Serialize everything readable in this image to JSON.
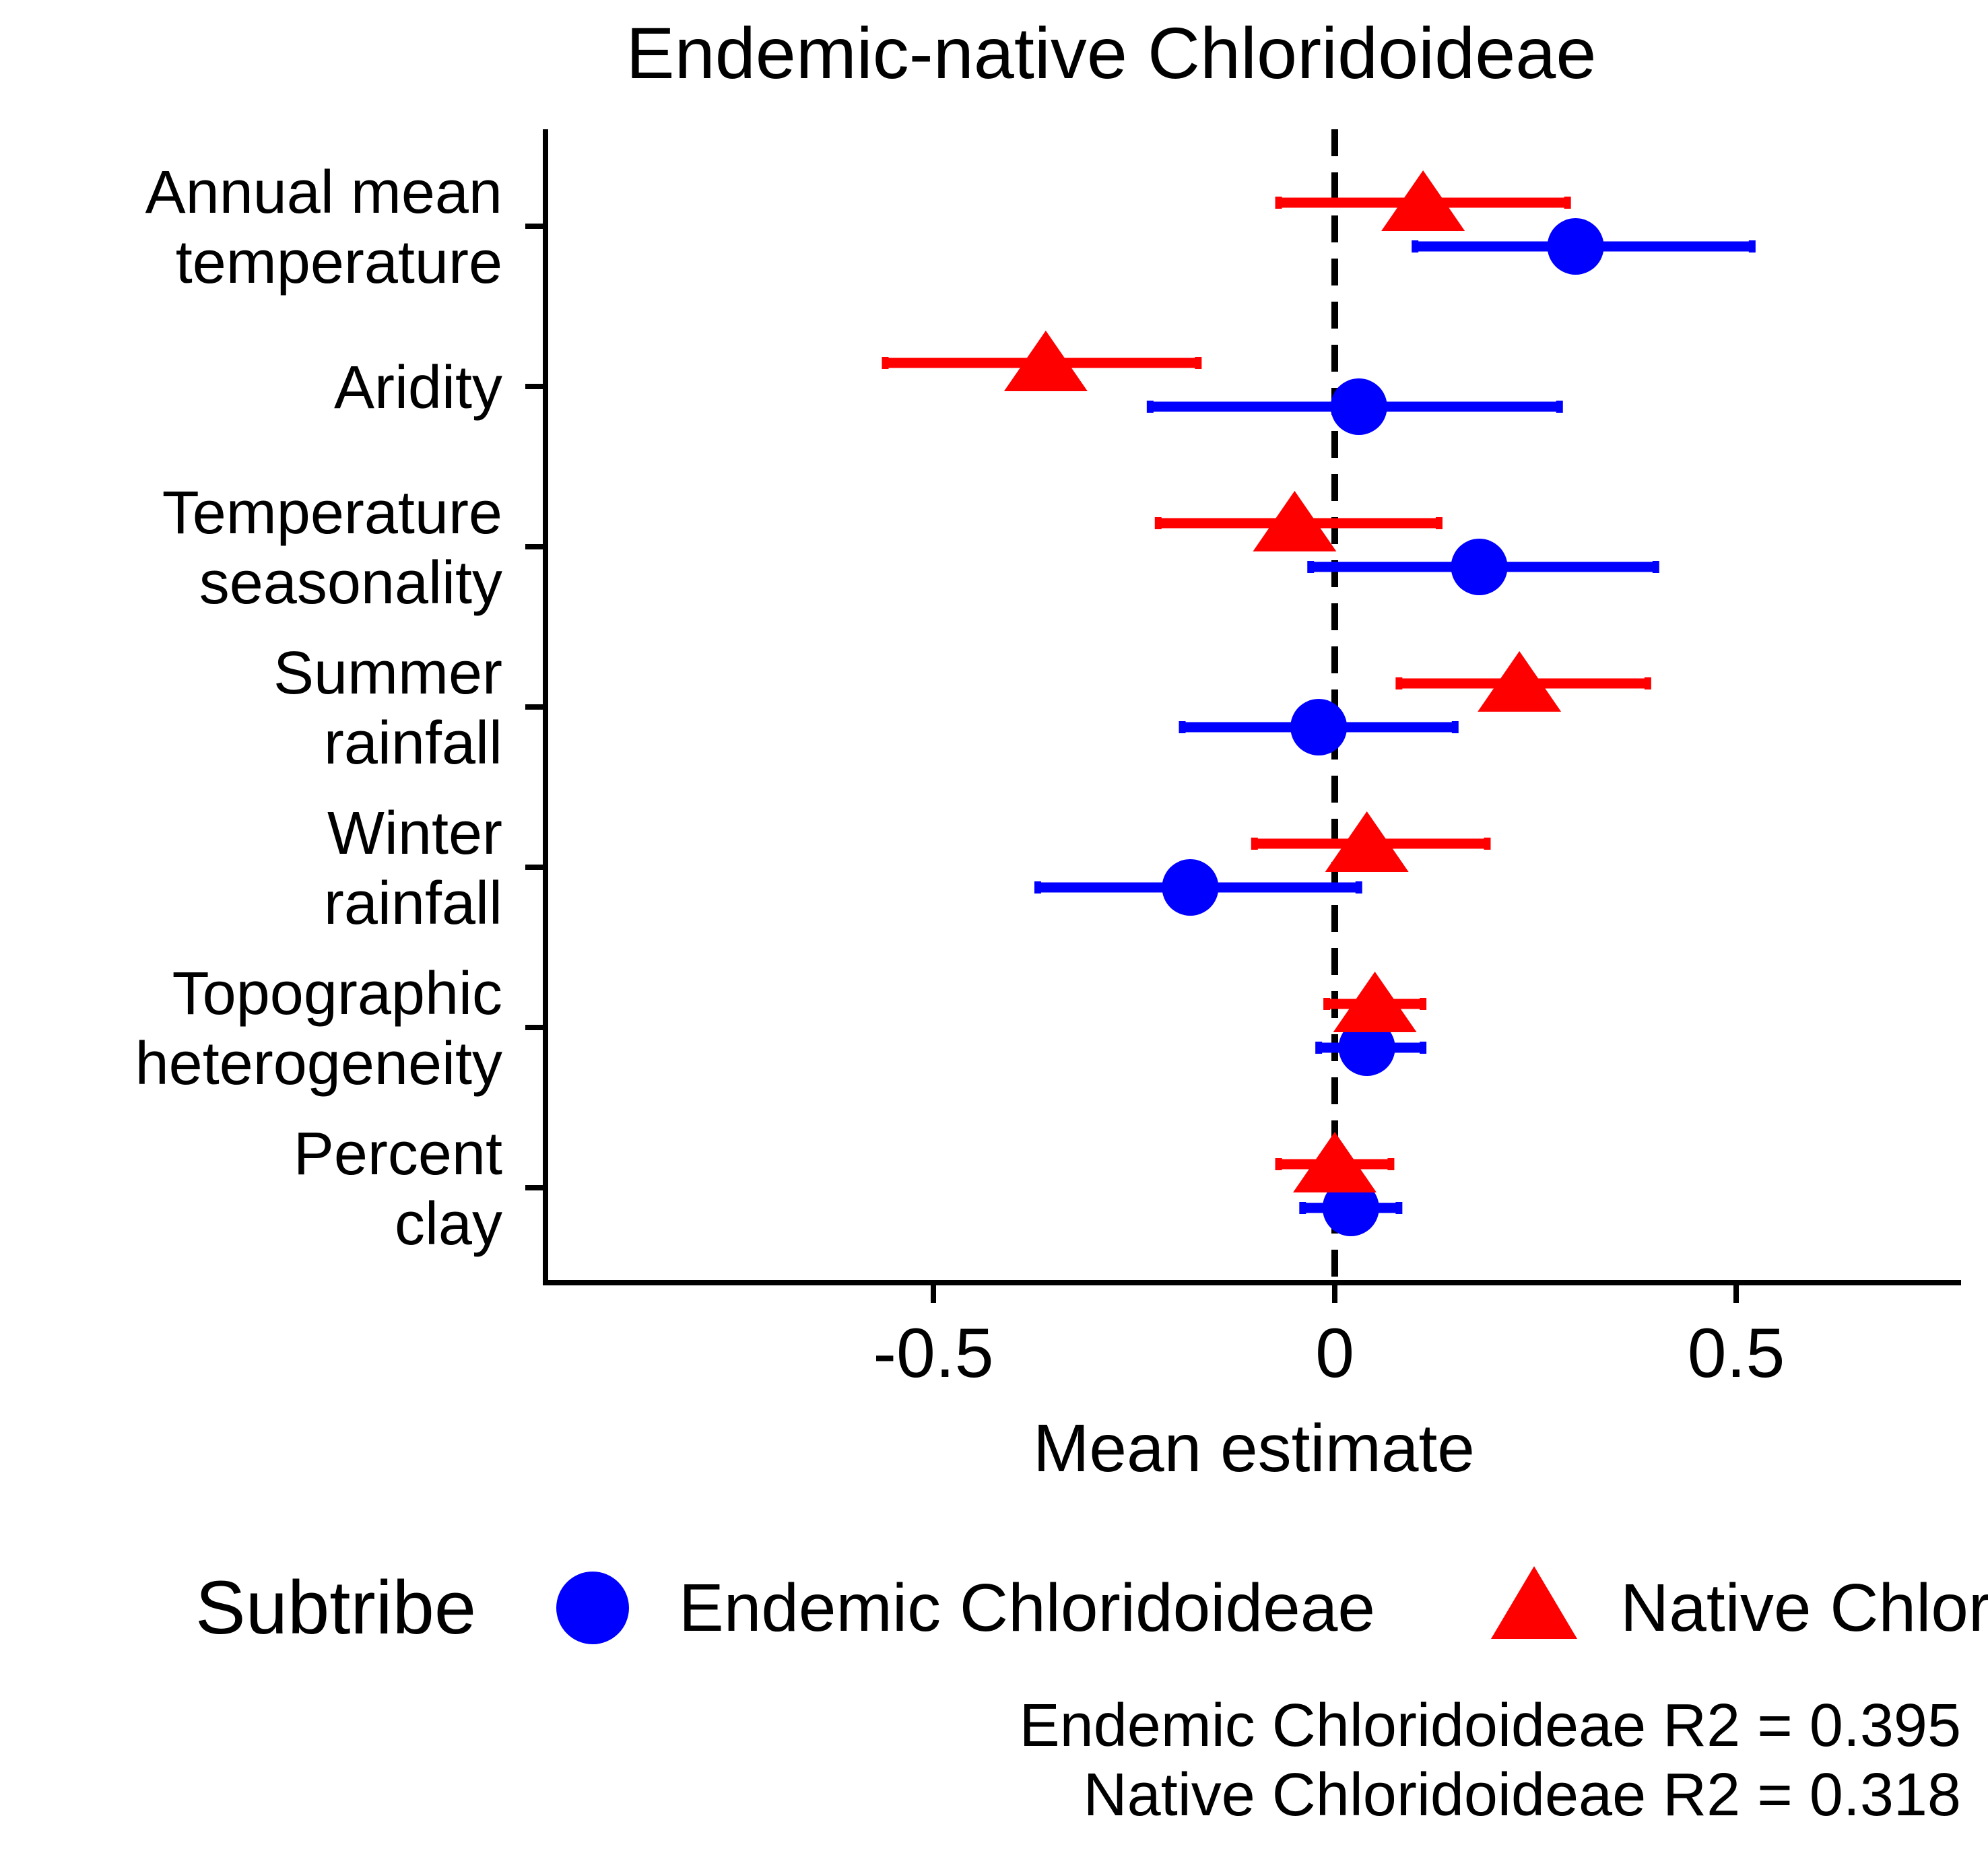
{
  "chart_data": {
    "type": "forest",
    "title": "Endemic-native Chloridoideae",
    "xlabel": "Mean estimate",
    "ylabel": "",
    "xlim": [
      -0.98,
      0.78
    ],
    "x_ticks": [
      {
        "value": -0.5,
        "label": "-0.5"
      },
      {
        "value": 0,
        "label": "0"
      },
      {
        "value": 0.5,
        "label": "0.5"
      }
    ],
    "reference_line": {
      "value": 0,
      "style": "dashed"
    },
    "categories": [
      {
        "key": "annual_mean_temperature",
        "lines": [
          "Annual mean",
          "temperature"
        ]
      },
      {
        "key": "aridity",
        "lines": [
          "Aridity"
        ]
      },
      {
        "key": "temperature_seasonality",
        "lines": [
          "Temperature",
          "seasonality"
        ]
      },
      {
        "key": "summer_rainfall",
        "lines": [
          "Summer",
          "rainfall"
        ]
      },
      {
        "key": "winter_rainfall",
        "lines": [
          "Winter",
          "rainfall"
        ]
      },
      {
        "key": "topographic_heterogeneity",
        "lines": [
          "Topographic",
          "heterogeneity"
        ]
      },
      {
        "key": "percent_clay",
        "lines": [
          "Percent",
          "clay"
        ]
      }
    ],
    "series": [
      {
        "name": "Endemic Chloridoideae",
        "color": "#0000ff",
        "marker": "circle",
        "points": [
          {
            "estimate": 0.3,
            "lower": 0.1,
            "upper": 0.52
          },
          {
            "estimate": 0.03,
            "lower": -0.23,
            "upper": 0.28
          },
          {
            "estimate": 0.18,
            "lower": -0.03,
            "upper": 0.4
          },
          {
            "estimate": -0.02,
            "lower": -0.19,
            "upper": 0.15
          },
          {
            "estimate": -0.18,
            "lower": -0.37,
            "upper": 0.03
          },
          {
            "estimate": 0.04,
            "lower": -0.02,
            "upper": 0.11
          },
          {
            "estimate": 0.02,
            "lower": -0.04,
            "upper": 0.08
          }
        ]
      },
      {
        "name": "Native Chloridoideae",
        "color": "#ff0000",
        "marker": "triangle",
        "points": [
          {
            "estimate": 0.11,
            "lower": -0.07,
            "upper": 0.29
          },
          {
            "estimate": -0.36,
            "lower": -0.56,
            "upper": -0.17
          },
          {
            "estimate": -0.05,
            "lower": -0.22,
            "upper": 0.13
          },
          {
            "estimate": 0.23,
            "lower": 0.08,
            "upper": 0.39
          },
          {
            "estimate": 0.04,
            "lower": -0.1,
            "upper": 0.19
          },
          {
            "estimate": 0.05,
            "lower": -0.01,
            "upper": 0.11
          },
          {
            "estimate": 0.0,
            "lower": -0.07,
            "upper": 0.07
          }
        ]
      }
    ],
    "legend": {
      "title": "Subtribe",
      "position": "bottom",
      "entries": [
        "Endemic Chloridoideae",
        "Native Chloridoideae"
      ]
    },
    "annotations": [
      "Endemic Chloridoideae R2 = 0.395",
      "Native Chloridoideae R2 = 0.318"
    ]
  }
}
